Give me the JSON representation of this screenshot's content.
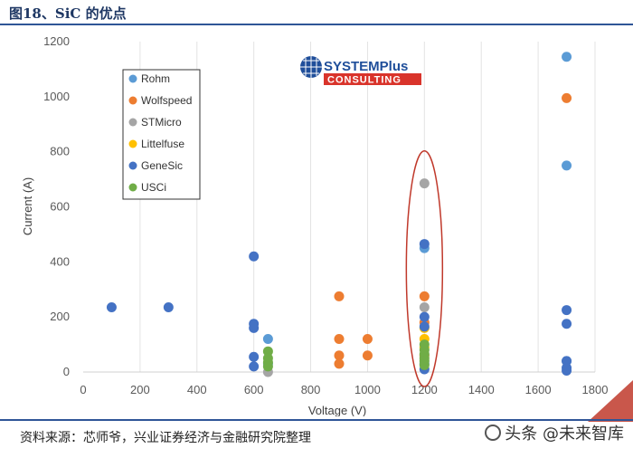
{
  "figure": {
    "title": "图18、SiC 的优点",
    "source": "资料来源：芯师爷，兴业证券经济与金融研究院整理",
    "watermark": "头条 @未来智库"
  },
  "logo": {
    "line1": "SYSTEMPlus",
    "line2": "CONSULTING"
  },
  "colors": {
    "title": "#1f3864",
    "rule": "#2f5597",
    "highlight": "#c0392b"
  },
  "chart_data": {
    "type": "scatter",
    "xlabel": "Voltage (V)",
    "ylabel": "Current (A)",
    "xlim": [
      0,
      1800
    ],
    "ylim": [
      0,
      1200
    ],
    "xticks": [
      0,
      200,
      400,
      600,
      800,
      1000,
      1200,
      1400,
      1600,
      1800
    ],
    "yticks": [
      0,
      200,
      400,
      600,
      800,
      1000,
      1200
    ],
    "grid": "vertical",
    "legend_position": "top-left",
    "series": [
      {
        "name": "Rohm",
        "color": "#5b9bd5",
        "points": [
          [
            650,
            120
          ],
          [
            1200,
            450
          ],
          [
            1700,
            1145
          ],
          [
            1700,
            750
          ],
          [
            1700,
            40
          ],
          [
            650,
            30
          ],
          [
            1200,
            30
          ]
        ]
      },
      {
        "name": "Wolfspeed",
        "color": "#ed7d31",
        "points": [
          [
            900,
            275
          ],
          [
            900,
            120
          ],
          [
            900,
            60
          ],
          [
            900,
            30
          ],
          [
            1000,
            120
          ],
          [
            1000,
            60
          ],
          [
            1200,
            275
          ],
          [
            1200,
            180
          ],
          [
            1200,
            60
          ],
          [
            1700,
            995
          ]
        ]
      },
      {
        "name": "STMicro",
        "color": "#a5a5a5",
        "points": [
          [
            1200,
            685
          ],
          [
            1200,
            235
          ],
          [
            650,
            0
          ]
        ]
      },
      {
        "name": "Littelfuse",
        "color": "#ffc000",
        "points": [
          [
            1200,
            160
          ],
          [
            1200,
            120
          ],
          [
            1200,
            90
          ]
        ]
      },
      {
        "name": "GeneSic",
        "color": "#4472c4",
        "points": [
          [
            100,
            235
          ],
          [
            300,
            235
          ],
          [
            600,
            420
          ],
          [
            600,
            175
          ],
          [
            600,
            160
          ],
          [
            600,
            55
          ],
          [
            600,
            20
          ],
          [
            1200,
            465
          ],
          [
            1200,
            200
          ],
          [
            1200,
            165
          ],
          [
            1200,
            10
          ],
          [
            1700,
            225
          ],
          [
            1700,
            175
          ],
          [
            1700,
            40
          ],
          [
            1700,
            15
          ],
          [
            1700,
            5
          ]
        ]
      },
      {
        "name": "USCi",
        "color": "#70ad47",
        "points": [
          [
            650,
            75
          ],
          [
            650,
            50
          ],
          [
            650,
            35
          ],
          [
            650,
            20
          ],
          [
            1200,
            100
          ],
          [
            1200,
            80
          ],
          [
            1200,
            65
          ],
          [
            1200,
            50
          ],
          [
            1200,
            40
          ],
          [
            1200,
            25
          ]
        ]
      }
    ],
    "annotation": {
      "type": "ellipse",
      "x": 1200,
      "y_range": [
        0,
        790
      ],
      "color": "#c0392b"
    }
  }
}
